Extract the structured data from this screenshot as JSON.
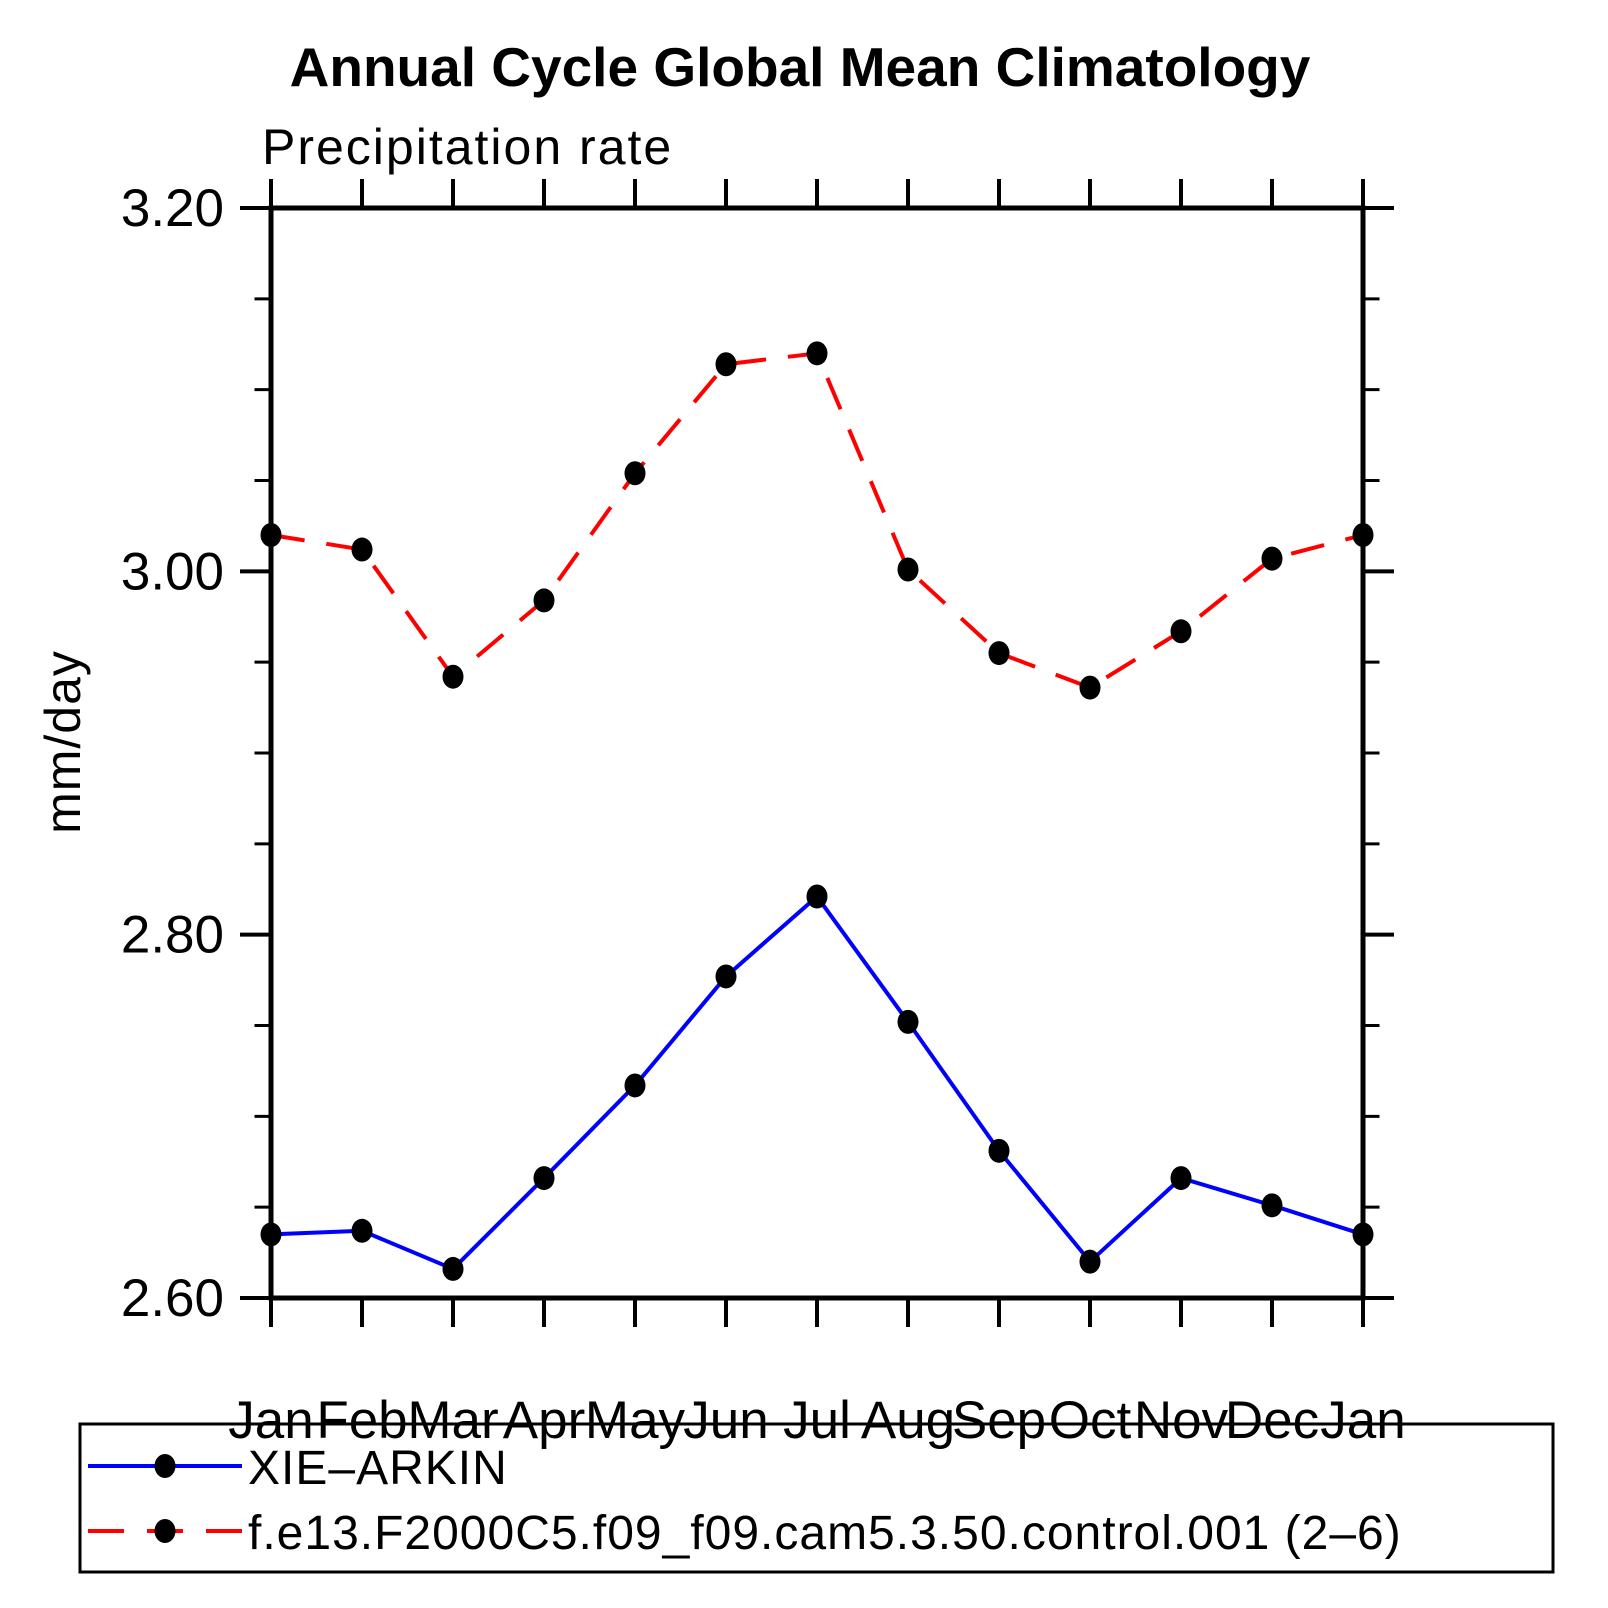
{
  "header": {
    "title": "Annual Cycle Global Mean Climatology",
    "subtitle": "Precipitation rate"
  },
  "chart_data": {
    "type": "line",
    "title": "Annual Cycle Global Mean Climatology",
    "subtitle": "Precipitation rate",
    "xlabel": "",
    "ylabel": "mm/day",
    "categories": [
      "Jan",
      "Feb",
      "Mar",
      "Apr",
      "May",
      "Jun",
      "Jul",
      "Aug",
      "Sep",
      "Oct",
      "Nov",
      "Dec",
      "Jan"
    ],
    "ylim": [
      2.6,
      3.2
    ],
    "yticks_major": [
      2.6,
      2.8,
      3.0,
      3.2
    ],
    "ytick_labels": [
      "2.60",
      "2.80",
      "3.00",
      "3.20"
    ],
    "yminor_step": 0.05,
    "grid": false,
    "legend_position": "bottom",
    "series": [
      {
        "name": "XIE–ARKIN",
        "color": "#0000ff",
        "line_style": "solid",
        "marker": "filled-black-circle",
        "values": [
          2.635,
          2.637,
          2.616,
          2.666,
          2.717,
          2.777,
          2.821,
          2.752,
          2.681,
          2.62,
          2.666,
          2.651,
          2.635
        ]
      },
      {
        "name": "f.e13.F2000C5.f09_f09.cam5.3.50.control.001 (2–6)",
        "color": "#ff0000",
        "line_style": "dashed",
        "marker": "filled-black-circle",
        "values": [
          3.02,
          3.012,
          2.942,
          2.984,
          3.054,
          3.114,
          3.12,
          3.001,
          2.955,
          2.936,
          2.967,
          3.007,
          3.02
        ]
      }
    ]
  },
  "legend": {
    "entries": [
      {
        "label": "XIE–ARKIN"
      },
      {
        "label": "f.e13.F2000C5.f09_f09.cam5.3.50.control.001 (2–6)"
      }
    ]
  },
  "colors": {
    "series1": "#0000ff",
    "series2": "#ff0000",
    "marker": "#000000",
    "axis": "#000000",
    "background": "#ffffff"
  }
}
